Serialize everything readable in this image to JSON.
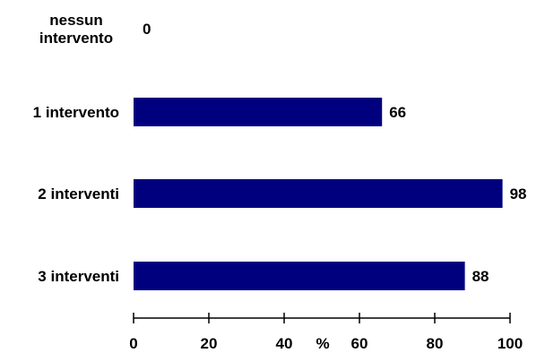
{
  "chart_data": {
    "type": "bar",
    "orientation": "horizontal",
    "categories": [
      [
        "nessun",
        "intervento"
      ],
      [
        "1 intervento"
      ],
      [
        "2 interventi"
      ],
      [
        "3 interventi"
      ]
    ],
    "values": [
      0,
      66,
      98,
      88
    ],
    "value_labels": [
      "0",
      "66",
      "98",
      "88"
    ],
    "xlim": [
      0,
      100
    ],
    "xticks": [
      0,
      20,
      40,
      60,
      80,
      100
    ],
    "tick_labels": [
      "0",
      "20",
      "40",
      "60",
      "80",
      "100"
    ],
    "xlabel": "%",
    "bar_color": "#00007f",
    "grid": false,
    "legend": "none"
  }
}
